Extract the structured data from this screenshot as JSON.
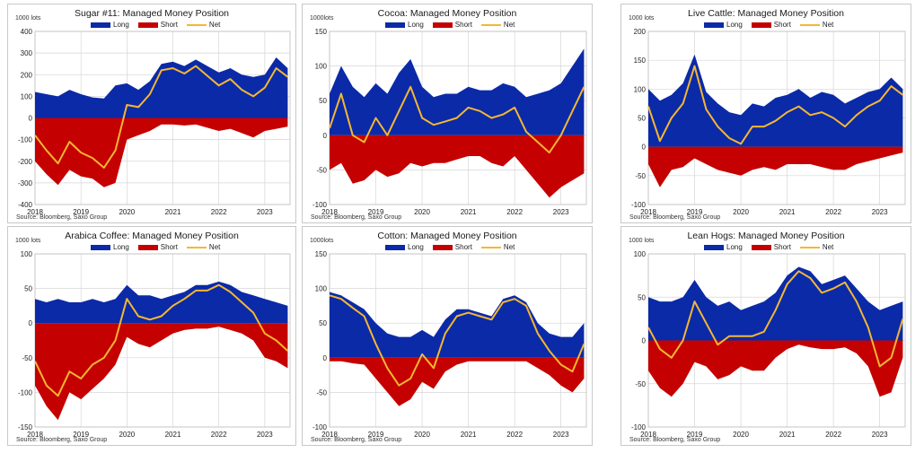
{
  "colors": {
    "long": "#0b2aa8",
    "short": "#c40000",
    "net": "#f5b731"
  },
  "legend": {
    "long": "Long",
    "short": "Short",
    "net": "Net"
  },
  "source": "Source: Bloomberg, Saxo Group",
  "chart_data": [
    {
      "type": "area",
      "title": "Sugar #11: Managed Money Position",
      "unit": "1000 lots",
      "ylim": [
        -400,
        400
      ],
      "yticks": [
        400,
        300,
        200,
        100,
        0,
        -100,
        -200,
        -300,
        -400
      ],
      "xlim": [
        2018,
        2023.55
      ],
      "xticks": [
        "2018",
        "2019",
        "2020",
        "2021",
        "2022",
        "2023"
      ],
      "x": [
        2018.0,
        2018.25,
        2018.5,
        2018.75,
        2019.0,
        2019.25,
        2019.5,
        2019.75,
        2020.0,
        2020.25,
        2020.5,
        2020.75,
        2021.0,
        2021.25,
        2021.5,
        2021.75,
        2022.0,
        2022.25,
        2022.5,
        2022.75,
        2023.0,
        2023.25,
        2023.5
      ],
      "series": [
        {
          "name": "Long",
          "values": [
            120,
            110,
            100,
            130,
            110,
            95,
            90,
            150,
            160,
            130,
            170,
            250,
            260,
            240,
            270,
            240,
            210,
            230,
            200,
            190,
            200,
            280,
            230
          ]
        },
        {
          "name": "Short",
          "values": [
            -200,
            -260,
            -310,
            -240,
            -270,
            -280,
            -320,
            -300,
            -100,
            -80,
            -60,
            -30,
            -30,
            -35,
            -30,
            -45,
            -60,
            -50,
            -70,
            -90,
            -60,
            -50,
            -40
          ]
        },
        {
          "name": "Net",
          "values": [
            -80,
            -150,
            -210,
            -110,
            -160,
            -185,
            -230,
            -150,
            60,
            50,
            110,
            220,
            230,
            205,
            240,
            195,
            150,
            180,
            130,
            100,
            140,
            230,
            190
          ]
        }
      ]
    },
    {
      "type": "area",
      "title": "Cocoa: Managed Money Position",
      "unit": "1000lots",
      "ylim": [
        -100,
        150
      ],
      "yticks": [
        150,
        100,
        50,
        0,
        -50,
        -100
      ],
      "xlim": [
        2018,
        2023.55
      ],
      "xticks": [
        "2018",
        "2019",
        "2020",
        "2021",
        "2022",
        "2023"
      ],
      "x": [
        2018.0,
        2018.25,
        2018.5,
        2018.75,
        2019.0,
        2019.25,
        2019.5,
        2019.75,
        2020.0,
        2020.25,
        2020.5,
        2020.75,
        2021.0,
        2021.25,
        2021.5,
        2021.75,
        2022.0,
        2022.25,
        2022.5,
        2022.75,
        2023.0,
        2023.25,
        2023.5
      ],
      "series": [
        {
          "name": "Long",
          "values": [
            60,
            100,
            70,
            55,
            75,
            60,
            90,
            110,
            70,
            55,
            60,
            60,
            70,
            65,
            65,
            75,
            70,
            55,
            60,
            65,
            75,
            100,
            125
          ]
        },
        {
          "name": "Short",
          "values": [
            -50,
            -40,
            -70,
            -65,
            -50,
            -60,
            -55,
            -40,
            -45,
            -40,
            -40,
            -35,
            -30,
            -30,
            -40,
            -45,
            -30,
            -50,
            -70,
            -90,
            -75,
            -65,
            -55
          ]
        },
        {
          "name": "Net",
          "values": [
            10,
            60,
            0,
            -10,
            25,
            0,
            35,
            70,
            25,
            15,
            20,
            25,
            40,
            35,
            25,
            30,
            40,
            5,
            -10,
            -25,
            0,
            35,
            70
          ]
        }
      ]
    },
    {
      "type": "area",
      "title": "Live Cattle: Managed Money Position",
      "unit": "1000 lots",
      "ylim": [
        -100,
        200
      ],
      "yticks": [
        200,
        150,
        100,
        50,
        0,
        -50,
        -100
      ],
      "xlim": [
        2018,
        2023.55
      ],
      "xticks": [
        "2018",
        "2019",
        "2020",
        "2021",
        "2022",
        "2023"
      ],
      "x": [
        2018.0,
        2018.25,
        2018.5,
        2018.75,
        2019.0,
        2019.25,
        2019.5,
        2019.75,
        2020.0,
        2020.25,
        2020.5,
        2020.75,
        2021.0,
        2021.25,
        2021.5,
        2021.75,
        2022.0,
        2022.25,
        2022.5,
        2022.75,
        2023.0,
        2023.25,
        2023.5
      ],
      "series": [
        {
          "name": "Long",
          "values": [
            100,
            80,
            90,
            110,
            160,
            95,
            75,
            60,
            55,
            75,
            70,
            85,
            90,
            100,
            85,
            95,
            90,
            75,
            85,
            95,
            100,
            120,
            100
          ]
        },
        {
          "name": "Short",
          "values": [
            -30,
            -70,
            -40,
            -35,
            -20,
            -30,
            -40,
            -45,
            -50,
            -40,
            -35,
            -40,
            -30,
            -30,
            -30,
            -35,
            -40,
            -40,
            -30,
            -25,
            -20,
            -15,
            -10
          ]
        },
        {
          "name": "Net",
          "values": [
            70,
            10,
            50,
            75,
            140,
            65,
            35,
            15,
            5,
            35,
            35,
            45,
            60,
            70,
            55,
            60,
            50,
            35,
            55,
            70,
            80,
            105,
            90
          ]
        }
      ]
    },
    {
      "type": "area",
      "title": "Arabica Coffee: Managed Money Position",
      "unit": "1000 lots",
      "ylim": [
        -150,
        100
      ],
      "yticks": [
        100,
        50,
        0,
        -50,
        -100,
        -150
      ],
      "xlim": [
        2018,
        2023.55
      ],
      "xticks": [
        "2018",
        "2019",
        "2020",
        "2021",
        "2022",
        "2023"
      ],
      "x": [
        2018.0,
        2018.25,
        2018.5,
        2018.75,
        2019.0,
        2019.25,
        2019.5,
        2019.75,
        2020.0,
        2020.25,
        2020.5,
        2020.75,
        2021.0,
        2021.25,
        2021.5,
        2021.75,
        2022.0,
        2022.25,
        2022.5,
        2022.75,
        2023.0,
        2023.25,
        2023.5
      ],
      "series": [
        {
          "name": "Long",
          "values": [
            35,
            30,
            35,
            30,
            30,
            35,
            30,
            35,
            55,
            40,
            40,
            35,
            40,
            45,
            55,
            55,
            60,
            55,
            45,
            40,
            35,
            30,
            25
          ]
        },
        {
          "name": "Short",
          "values": [
            -90,
            -120,
            -140,
            -100,
            -110,
            -95,
            -80,
            -60,
            -20,
            -30,
            -35,
            -25,
            -15,
            -10,
            -8,
            -8,
            -5,
            -10,
            -15,
            -25,
            -50,
            -55,
            -65
          ]
        },
        {
          "name": "Net",
          "values": [
            -55,
            -90,
            -105,
            -70,
            -80,
            -60,
            -50,
            -25,
            35,
            10,
            5,
            10,
            25,
            35,
            47,
            47,
            55,
            45,
            30,
            15,
            -15,
            -25,
            -40
          ]
        }
      ]
    },
    {
      "type": "area",
      "title": "Cotton: Managed Money Position",
      "unit": "1000lots",
      "ylim": [
        -100,
        150
      ],
      "yticks": [
        150,
        100,
        50,
        0,
        -50,
        -100
      ],
      "xlim": [
        2018,
        2023.55
      ],
      "xticks": [
        "2018",
        "2019",
        "2020",
        "2021",
        "2022",
        "2023"
      ],
      "x": [
        2018.0,
        2018.25,
        2018.5,
        2018.75,
        2019.0,
        2019.25,
        2019.5,
        2019.75,
        2020.0,
        2020.25,
        2020.5,
        2020.75,
        2021.0,
        2021.25,
        2021.5,
        2021.75,
        2022.0,
        2022.25,
        2022.5,
        2022.75,
        2023.0,
        2023.25,
        2023.5
      ],
      "series": [
        {
          "name": "Long",
          "values": [
            95,
            90,
            80,
            70,
            50,
            35,
            30,
            30,
            40,
            30,
            55,
            70,
            70,
            65,
            60,
            85,
            90,
            80,
            50,
            35,
            30,
            30,
            50
          ]
        },
        {
          "name": "Short",
          "values": [
            -5,
            -5,
            -8,
            -10,
            -30,
            -50,
            -70,
            -60,
            -35,
            -45,
            -20,
            -10,
            -5,
            -5,
            -5,
            -5,
            -5,
            -5,
            -15,
            -25,
            -40,
            -50,
            -30
          ]
        },
        {
          "name": "Net",
          "values": [
            90,
            85,
            72,
            60,
            20,
            -15,
            -40,
            -30,
            5,
            -15,
            35,
            60,
            65,
            60,
            55,
            80,
            85,
            75,
            35,
            10,
            -10,
            -20,
            20
          ]
        }
      ]
    },
    {
      "type": "area",
      "title": "Lean Hogs: Managed Money Position",
      "unit": "1000 lots",
      "ylim": [
        -100,
        100
      ],
      "yticks": [
        100,
        50,
        0,
        -50,
        -100
      ],
      "xlim": [
        2018,
        2023.55
      ],
      "xticks": [
        "2018",
        "2019",
        "2020",
        "2021",
        "2022",
        "2023"
      ],
      "x": [
        2018.0,
        2018.25,
        2018.5,
        2018.75,
        2019.0,
        2019.25,
        2019.5,
        2019.75,
        2020.0,
        2020.25,
        2020.5,
        2020.75,
        2021.0,
        2021.25,
        2021.5,
        2021.75,
        2022.0,
        2022.25,
        2022.5,
        2022.75,
        2023.0,
        2023.25,
        2023.5
      ],
      "series": [
        {
          "name": "Long",
          "values": [
            50,
            45,
            45,
            50,
            70,
            50,
            40,
            45,
            35,
            40,
            45,
            55,
            75,
            85,
            80,
            65,
            70,
            75,
            60,
            45,
            35,
            40,
            45
          ]
        },
        {
          "name": "Short",
          "values": [
            -35,
            -55,
            -65,
            -50,
            -25,
            -30,
            -45,
            -40,
            -30,
            -35,
            -35,
            -20,
            -10,
            -5,
            -8,
            -10,
            -10,
            -8,
            -15,
            -30,
            -65,
            -60,
            -20
          ]
        },
        {
          "name": "Net",
          "values": [
            15,
            -10,
            -20,
            0,
            45,
            20,
            -5,
            5,
            5,
            5,
            10,
            35,
            65,
            80,
            72,
            55,
            60,
            67,
            45,
            15,
            -30,
            -20,
            25
          ]
        }
      ]
    }
  ]
}
